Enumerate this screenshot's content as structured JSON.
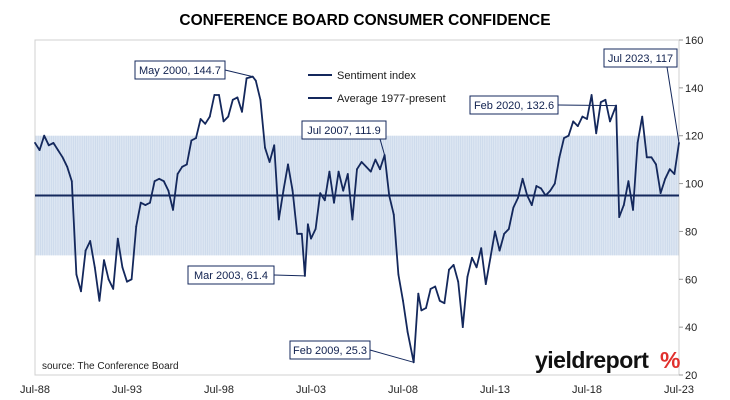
{
  "chart_data": {
    "type": "line",
    "title": "CONFERENCE BOARD CONSUMER CONFIDENCE",
    "xlabel": "",
    "ylabel": "",
    "ylim": [
      20,
      160
    ],
    "y_ticks": [
      20,
      40,
      60,
      80,
      100,
      120,
      140,
      160
    ],
    "y_axis_side": "right",
    "x_range": [
      "1988-07",
      "2023-07"
    ],
    "x_tick_labels": [
      {
        "label": "Jul-88",
        "date": "1988-07"
      },
      {
        "label": "Jul-93",
        "date": "1993-07"
      },
      {
        "label": "Jul-98",
        "date": "1998-07"
      },
      {
        "label": "Jul-03",
        "date": "2003-07"
      },
      {
        "label": "Jul-08",
        "date": "2008-07"
      },
      {
        "label": "Jul-13",
        "date": "2013-07"
      },
      {
        "label": "Jul-18",
        "date": "2018-07"
      },
      {
        "label": "Jul-23",
        "date": "2023-07"
      }
    ],
    "band": {
      "from": 70,
      "to": 120,
      "color": "#dce6f2"
    },
    "grid": false,
    "legend_position": "top-center",
    "series": [
      {
        "name": "Sentiment index",
        "color": "#14285c",
        "points": [
          [
            "1988-07",
            117
          ],
          [
            "1988-10",
            114
          ],
          [
            "1989-01",
            120
          ],
          [
            "1989-04",
            116
          ],
          [
            "1989-07",
            117
          ],
          [
            "1989-10",
            114
          ],
          [
            "1990-01",
            111
          ],
          [
            "1990-04",
            107
          ],
          [
            "1990-07",
            101
          ],
          [
            "1990-10",
            62
          ],
          [
            "1991-01",
            55
          ],
          [
            "1991-04",
            72
          ],
          [
            "1991-07",
            76
          ],
          [
            "1991-10",
            65
          ],
          [
            "1992-01",
            51
          ],
          [
            "1992-04",
            68
          ],
          [
            "1992-07",
            60
          ],
          [
            "1992-10",
            56
          ],
          [
            "1993-01",
            77
          ],
          [
            "1993-04",
            65
          ],
          [
            "1993-07",
            59
          ],
          [
            "1993-10",
            60
          ],
          [
            "1994-01",
            82
          ],
          [
            "1994-04",
            92
          ],
          [
            "1994-07",
            91
          ],
          [
            "1994-10",
            92
          ],
          [
            "1995-01",
            101
          ],
          [
            "1995-04",
            102
          ],
          [
            "1995-07",
            101
          ],
          [
            "1995-10",
            97
          ],
          [
            "1996-01",
            89
          ],
          [
            "1996-04",
            104
          ],
          [
            "1996-07",
            107
          ],
          [
            "1996-10",
            108
          ],
          [
            "1997-01",
            118
          ],
          [
            "1997-04",
            119
          ],
          [
            "1997-07",
            127
          ],
          [
            "1997-10",
            125
          ],
          [
            "1998-01",
            128
          ],
          [
            "1998-04",
            137
          ],
          [
            "1998-07",
            137
          ],
          [
            "1998-10",
            126
          ],
          [
            "1999-01",
            128
          ],
          [
            "1999-04",
            135
          ],
          [
            "1999-07",
            136
          ],
          [
            "1999-10",
            130
          ],
          [
            "2000-01",
            144
          ],
          [
            "2000-05",
            144.7
          ],
          [
            "2000-07",
            143
          ],
          [
            "2000-10",
            135
          ],
          [
            "2001-01",
            115
          ],
          [
            "2001-04",
            109
          ],
          [
            "2001-07",
            116
          ],
          [
            "2001-10",
            85
          ],
          [
            "2002-01",
            97
          ],
          [
            "2002-04",
            108
          ],
          [
            "2002-07",
            97
          ],
          [
            "2002-10",
            79
          ],
          [
            "2003-01",
            79
          ],
          [
            "2003-03",
            61.4
          ],
          [
            "2003-05",
            83
          ],
          [
            "2003-07",
            77
          ],
          [
            "2003-10",
            81
          ],
          [
            "2004-01",
            96
          ],
          [
            "2004-04",
            93
          ],
          [
            "2004-07",
            105
          ],
          [
            "2004-10",
            92
          ],
          [
            "2005-01",
            105
          ],
          [
            "2005-04",
            97
          ],
          [
            "2005-07",
            104
          ],
          [
            "2005-10",
            85
          ],
          [
            "2006-01",
            106
          ],
          [
            "2006-04",
            109
          ],
          [
            "2006-07",
            107
          ],
          [
            "2006-10",
            105
          ],
          [
            "2007-01",
            110
          ],
          [
            "2007-04",
            106
          ],
          [
            "2007-07",
            111.9
          ],
          [
            "2007-10",
            95
          ],
          [
            "2008-01",
            87
          ],
          [
            "2008-04",
            62
          ],
          [
            "2008-07",
            51
          ],
          [
            "2008-10",
            38
          ],
          [
            "2009-02",
            25.3
          ],
          [
            "2009-05",
            54
          ],
          [
            "2009-07",
            47
          ],
          [
            "2009-10",
            48
          ],
          [
            "2010-01",
            56
          ],
          [
            "2010-04",
            57
          ],
          [
            "2010-07",
            51
          ],
          [
            "2010-10",
            50
          ],
          [
            "2011-01",
            64
          ],
          [
            "2011-04",
            66
          ],
          [
            "2011-07",
            59
          ],
          [
            "2011-10",
            40
          ],
          [
            "2012-01",
            61
          ],
          [
            "2012-04",
            69
          ],
          [
            "2012-07",
            65
          ],
          [
            "2012-10",
            73
          ],
          [
            "2013-01",
            58
          ],
          [
            "2013-04",
            69
          ],
          [
            "2013-07",
            80
          ],
          [
            "2013-10",
            72
          ],
          [
            "2014-01",
            79
          ],
          [
            "2014-04",
            81
          ],
          [
            "2014-07",
            90
          ],
          [
            "2014-10",
            94
          ],
          [
            "2015-01",
            102
          ],
          [
            "2015-04",
            95
          ],
          [
            "2015-07",
            91
          ],
          [
            "2015-10",
            99
          ],
          [
            "2016-01",
            98
          ],
          [
            "2016-04",
            95
          ],
          [
            "2016-07",
            97
          ],
          [
            "2016-10",
            100
          ],
          [
            "2017-01",
            111
          ],
          [
            "2017-04",
            119
          ],
          [
            "2017-07",
            120
          ],
          [
            "2017-10",
            126
          ],
          [
            "2018-01",
            124
          ],
          [
            "2018-04",
            128
          ],
          [
            "2018-07",
            127
          ],
          [
            "2018-10",
            137
          ],
          [
            "2019-01",
            121
          ],
          [
            "2019-04",
            134
          ],
          [
            "2019-07",
            135
          ],
          [
            "2019-10",
            126
          ],
          [
            "2020-02",
            132.6
          ],
          [
            "2020-04",
            86
          ],
          [
            "2020-07",
            91
          ],
          [
            "2020-10",
            101
          ],
          [
            "2021-01",
            89
          ],
          [
            "2021-04",
            117
          ],
          [
            "2021-07",
            128
          ],
          [
            "2021-10",
            111
          ],
          [
            "2022-01",
            111
          ],
          [
            "2022-04",
            108
          ],
          [
            "2022-07",
            96
          ],
          [
            "2022-10",
            102
          ],
          [
            "2023-01",
            106
          ],
          [
            "2023-04",
            104
          ],
          [
            "2023-07",
            117
          ]
        ]
      },
      {
        "name": "Average 1977-present",
        "color": "#14285c",
        "constant": 95
      }
    ],
    "annotations": [
      {
        "label": "May 2000, 144.7",
        "date": "2000-05",
        "value": 144.7
      },
      {
        "label": "Mar 2003, 61.4",
        "date": "2003-03",
        "value": 61.4
      },
      {
        "label": "Jul 2007, 111.9",
        "date": "2007-07",
        "value": 111.9
      },
      {
        "label": "Feb 2009, 25.3",
        "date": "2009-02",
        "value": 25.3
      },
      {
        "label": "Feb 2020, 132.6",
        "date": "2020-02",
        "value": 132.6
      },
      {
        "label": "Jul 2023, 117",
        "date": "2023-07",
        "value": 117
      }
    ],
    "source_note": "source: The Conference Board"
  },
  "branding": {
    "word": "yieldreport",
    "symbol": "%"
  }
}
